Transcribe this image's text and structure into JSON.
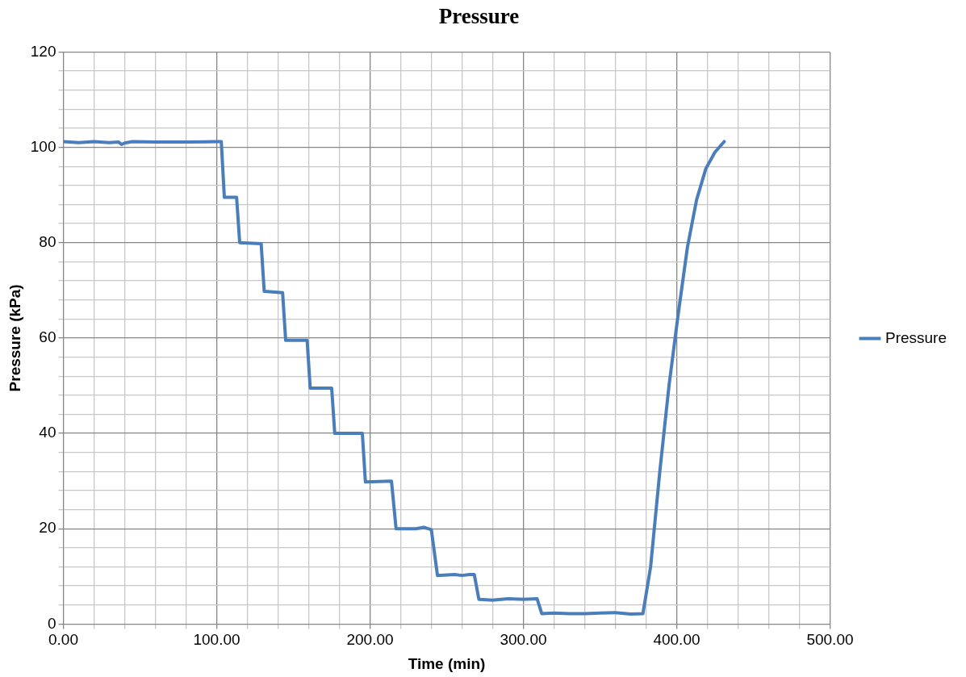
{
  "chart_data": {
    "type": "line",
    "title": "Pressure",
    "xlabel": "Time (min)",
    "ylabel": "Pressure (kPa)",
    "x": [
      0,
      10,
      20,
      30,
      36,
      38,
      40,
      45,
      60,
      80,
      100,
      103,
      105,
      113,
      115,
      129,
      131,
      143,
      145,
      159,
      161,
      175,
      177,
      195,
      197,
      214,
      217,
      230,
      235,
      240,
      244,
      255,
      260,
      265,
      268,
      271,
      280,
      290,
      300,
      309,
      312,
      320,
      330,
      340,
      350,
      360,
      370,
      378,
      383,
      389,
      395,
      401,
      407,
      413,
      419,
      425,
      431
    ],
    "series": [
      {
        "name": "Pressure",
        "color": "#4a7ebb",
        "values": [
          101.2,
          101.0,
          101.2,
          101.0,
          101.1,
          100.6,
          100.9,
          101.2,
          101.1,
          101.1,
          101.2,
          101.2,
          89.5,
          89.5,
          80,
          79.8,
          69.8,
          69.5,
          59.5,
          59.5,
          49.5,
          49.5,
          40,
          40,
          29.8,
          30,
          20,
          20,
          20.3,
          19.8,
          10.2,
          10.4,
          10.2,
          10.4,
          10.4,
          5.2,
          5.0,
          5.3,
          5.2,
          5.3,
          2.2,
          2.3,
          2.2,
          2.2,
          2.3,
          2.4,
          2.1,
          2.2,
          12,
          32,
          50,
          65,
          79,
          89,
          95.5,
          99,
          101.2
        ]
      }
    ],
    "xlim": [
      0,
      500
    ],
    "xticks": [
      {
        "value": 0,
        "label": "0.00"
      },
      {
        "value": 20,
        "label": null
      },
      {
        "value": 40,
        "label": null
      },
      {
        "value": 60,
        "label": null
      },
      {
        "value": 80,
        "label": null
      },
      {
        "value": 100,
        "label": "100.00"
      },
      {
        "value": 120,
        "label": null
      },
      {
        "value": 140,
        "label": null
      },
      {
        "value": 160,
        "label": null
      },
      {
        "value": 180,
        "label": null
      },
      {
        "value": 200,
        "label": "200.00"
      },
      {
        "value": 220,
        "label": null
      },
      {
        "value": 240,
        "label": null
      },
      {
        "value": 260,
        "label": null
      },
      {
        "value": 280,
        "label": null
      },
      {
        "value": 300,
        "label": "300.00"
      },
      {
        "value": 320,
        "label": null
      },
      {
        "value": 340,
        "label": null
      },
      {
        "value": 360,
        "label": null
      },
      {
        "value": 380,
        "label": null
      },
      {
        "value": 400,
        "label": "400.00"
      },
      {
        "value": 420,
        "label": null
      },
      {
        "value": 440,
        "label": null
      },
      {
        "value": 460,
        "label": null
      },
      {
        "value": 480,
        "label": null
      },
      {
        "value": 500,
        "label": "500.00"
      }
    ],
    "ylim": [
      0,
      120
    ],
    "yticks": [
      0,
      {
        "value": 4,
        "label": null
      },
      {
        "value": 8,
        "label": null
      },
      {
        "value": 12,
        "label": null
      },
      {
        "value": 16,
        "label": null
      },
      20,
      {
        "value": 24,
        "label": null
      },
      {
        "value": 28,
        "label": null
      },
      {
        "value": 32,
        "label": null
      },
      {
        "value": 36,
        "label": null
      },
      40,
      {
        "value": 44,
        "label": null
      },
      {
        "value": 48,
        "label": null
      },
      {
        "value": 52,
        "label": null
      },
      {
        "value": 56,
        "label": null
      },
      60,
      {
        "value": 64,
        "label": null
      },
      {
        "value": 68,
        "label": null
      },
      {
        "value": 72,
        "label": null
      },
      {
        "value": 76,
        "label": null
      },
      80,
      {
        "value": 84,
        "label": null
      },
      {
        "value": 88,
        "label": null
      },
      {
        "value": 92,
        "label": null
      },
      {
        "value": 96,
        "label": null
      },
      100,
      {
        "value": 104,
        "label": null
      },
      {
        "value": 108,
        "label": null
      },
      {
        "value": 112,
        "label": null
      },
      {
        "value": 116,
        "label": null
      },
      120
    ],
    "grid": true,
    "legend": "right",
    "marker": "none",
    "line_style": "solid"
  }
}
